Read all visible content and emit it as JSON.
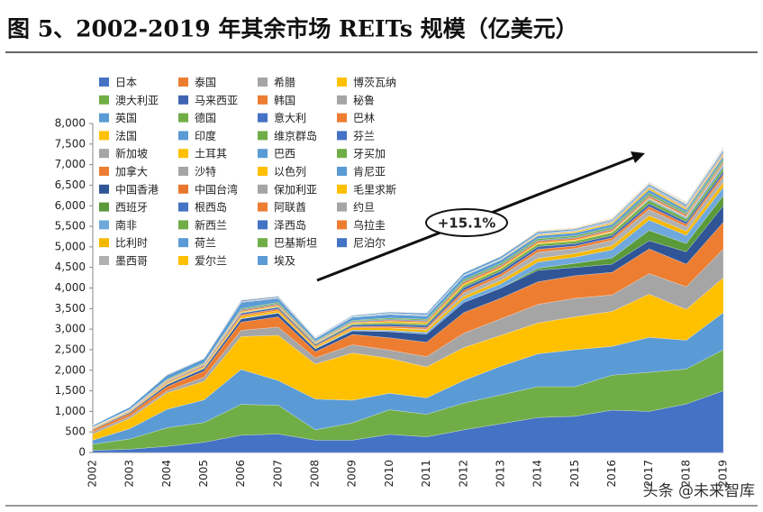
{
  "chart_data": {
    "type": "stacked-area",
    "title": "图 5、2002-2019 年其余市场 REITs 规模（亿美元）",
    "annotation": "+15.1%",
    "categories": [
      "2002",
      "2003",
      "2004",
      "2005",
      "2006",
      "2007",
      "2008",
      "2009",
      "2010",
      "2011",
      "2012",
      "2013",
      "2014",
      "2015",
      "2016",
      "2017",
      "2018",
      "2019"
    ],
    "ylim": [
      0,
      8000
    ],
    "yticks": [
      0,
      500,
      {
        "value": 1000,
        "label": "1,000"
      },
      {
        "value": 1500,
        "label": "1,500"
      },
      {
        "value": 2000,
        "label": "2,000"
      },
      {
        "value": 2500,
        "label": "2,500"
      },
      {
        "value": 3000,
        "label": "3,000"
      },
      {
        "value": 3500,
        "label": "3,500"
      },
      {
        "value": 4000,
        "label": "4,000"
      },
      {
        "value": 4500,
        "label": "4,500"
      },
      {
        "value": 5000,
        "label": "5,000"
      },
      {
        "value": 5500,
        "label": "5,500"
      },
      {
        "value": 6000,
        "label": "6,000"
      },
      {
        "value": 6500,
        "label": "6,500"
      },
      {
        "value": 7000,
        "label": "7,000"
      },
      {
        "value": 7500,
        "label": "7,500"
      },
      {
        "value": 8000,
        "label": "8,000"
      }
    ],
    "series": [
      {
        "name": "日本",
        "color": "#4472c4",
        "values": [
          50,
          80,
          150,
          250,
          420,
          450,
          300,
          300,
          440,
          380,
          550,
          700,
          850,
          880,
          1030,
          1000,
          1180,
          1500
        ]
      },
      {
        "name": "澳大利亚",
        "color": "#70ad47",
        "values": [
          150,
          250,
          450,
          480,
          750,
          700,
          250,
          420,
          600,
          550,
          650,
          700,
          750,
          720,
          850,
          950,
          850,
          1000
        ]
      },
      {
        "name": "英国",
        "color": "#5b9bd5",
        "values": [
          100,
          250,
          450,
          550,
          850,
          600,
          750,
          550,
          400,
          400,
          550,
          700,
          800,
          900,
          700,
          850,
          700,
          900
        ]
      },
      {
        "name": "法国",
        "color": "#ffc000",
        "values": [
          150,
          250,
          400,
          450,
          800,
          1100,
          850,
          1150,
          850,
          750,
          800,
          750,
          750,
          800,
          850,
          1050,
          750,
          850
        ]
      },
      {
        "name": "新加坡",
        "color": "#a5a5a5",
        "values": [
          50,
          50,
          50,
          100,
          150,
          200,
          150,
          200,
          200,
          250,
          350,
          400,
          450,
          450,
          400,
          500,
          550,
          700
        ]
      },
      {
        "name": "加拿大",
        "color": "#ed7d31",
        "values": [
          50,
          70,
          100,
          150,
          200,
          250,
          150,
          250,
          300,
          350,
          500,
          500,
          550,
          550,
          550,
          600,
          550,
          650
        ]
      },
      {
        "name": "中国香港",
        "color": "#2f5597",
        "values": [
          20,
          30,
          50,
          60,
          80,
          90,
          70,
          90,
          150,
          200,
          250,
          250,
          280,
          200,
          200,
          200,
          300,
          400
        ]
      },
      {
        "name": "西班牙",
        "color": "#5a9a3a",
        "values": [
          0,
          0,
          0,
          0,
          0,
          0,
          0,
          0,
          0,
          0,
          0,
          0,
          50,
          100,
          150,
          250,
          200,
          250
        ]
      },
      {
        "name": "南非",
        "color": "#6fa8dc",
        "values": [
          0,
          0,
          10,
          10,
          10,
          10,
          10,
          20,
          30,
          40,
          80,
          100,
          150,
          150,
          200,
          250,
          200,
          200
        ]
      },
      {
        "name": "比利时",
        "color": "#f5b800",
        "values": [
          20,
          20,
          30,
          30,
          50,
          50,
          40,
          50,
          60,
          60,
          70,
          80,
          90,
          90,
          100,
          110,
          100,
          120
        ]
      },
      {
        "name": "墨西哥",
        "color": "#b0b0b0",
        "values": [
          0,
          0,
          0,
          0,
          0,
          0,
          0,
          0,
          0,
          20,
          80,
          100,
          150,
          120,
          130,
          150,
          110,
          130
        ]
      },
      {
        "name": "泰国",
        "color": "#ed7d31",
        "values": [
          10,
          15,
          20,
          25,
          40,
          40,
          30,
          30,
          40,
          40,
          60,
          60,
          70,
          60,
          60,
          70,
          60,
          70
        ]
      },
      {
        "name": "马来西亚",
        "color": "#3e64b3",
        "values": [
          10,
          15,
          20,
          25,
          40,
          40,
          30,
          40,
          50,
          50,
          70,
          70,
          70,
          60,
          60,
          70,
          60,
          70
        ]
      },
      {
        "name": "德国",
        "color": "#70ad47",
        "values": [
          0,
          0,
          0,
          0,
          10,
          20,
          20,
          30,
          40,
          40,
          50,
          60,
          60,
          60,
          70,
          80,
          70,
          80
        ]
      },
      {
        "name": "印度",
        "color": "#5b9bd5",
        "values": [
          0,
          0,
          0,
          0,
          0,
          0,
          0,
          0,
          0,
          0,
          0,
          0,
          0,
          0,
          0,
          30,
          30,
          60
        ]
      },
      {
        "name": "土耳其",
        "color": "#ffc000",
        "values": [
          0,
          0,
          10,
          10,
          20,
          20,
          10,
          20,
          30,
          30,
          40,
          30,
          30,
          30,
          20,
          20,
          10,
          15
        ]
      },
      {
        "name": "沙特",
        "color": "#a5a5a5",
        "values": [
          0,
          0,
          0,
          0,
          0,
          0,
          0,
          0,
          0,
          0,
          0,
          0,
          0,
          0,
          10,
          20,
          20,
          30
        ]
      },
      {
        "name": "中国台湾",
        "color": "#e8762d",
        "values": [
          5,
          10,
          20,
          20,
          30,
          30,
          20,
          20,
          30,
          30,
          40,
          40,
          40,
          40,
          40,
          40,
          40,
          40
        ]
      },
      {
        "name": "根西岛",
        "color": "#4472c4",
        "values": [
          0,
          0,
          0,
          0,
          20,
          20,
          10,
          20,
          20,
          20,
          20,
          20,
          20,
          20,
          20,
          20,
          20,
          20
        ]
      },
      {
        "name": "新西兰",
        "color": "#70ad47",
        "values": [
          10,
          10,
          20,
          20,
          30,
          30,
          20,
          20,
          30,
          30,
          40,
          40,
          40,
          40,
          40,
          50,
          40,
          50
        ]
      },
      {
        "name": "荷兰",
        "color": "#5b9bd5",
        "values": [
          40,
          60,
          100,
          100,
          150,
          100,
          60,
          80,
          90,
          80,
          90,
          80,
          70,
          70,
          70,
          80,
          60,
          70
        ]
      },
      {
        "name": "爱尔兰",
        "color": "#ffc000",
        "values": [
          0,
          0,
          0,
          0,
          0,
          0,
          0,
          0,
          0,
          0,
          0,
          10,
          20,
          30,
          30,
          40,
          30,
          30
        ]
      },
      {
        "name": "希腊",
        "color": "#a5a5a5",
        "values": [
          0,
          0,
          10,
          10,
          20,
          15,
          5,
          5,
          5,
          5,
          5,
          5,
          10,
          10,
          20,
          20,
          20,
          20
        ]
      },
      {
        "name": "韩国",
        "color": "#ed7d31",
        "values": [
          0,
          0,
          5,
          5,
          5,
          5,
          5,
          5,
          5,
          5,
          5,
          5,
          5,
          5,
          10,
          10,
          20,
          30
        ]
      },
      {
        "name": "意大利",
        "color": "#4472c4",
        "values": [
          0,
          0,
          10,
          10,
          20,
          20,
          10,
          10,
          10,
          10,
          10,
          10,
          15,
          15,
          15,
          15,
          15,
          15
        ]
      },
      {
        "name": "维京群岛",
        "color": "#70ad47",
        "values": [
          0,
          0,
          0,
          0,
          5,
          5,
          5,
          5,
          5,
          5,
          5,
          5,
          5,
          5,
          5,
          5,
          5,
          5
        ]
      },
      {
        "name": "巴西",
        "color": "#5b9bd5",
        "values": [
          0,
          0,
          0,
          0,
          10,
          10,
          10,
          20,
          30,
          40,
          50,
          50,
          40,
          30,
          30,
          40,
          40,
          50
        ]
      },
      {
        "name": "以色列",
        "color": "#ffc000",
        "values": [
          0,
          0,
          0,
          0,
          5,
          5,
          5,
          5,
          5,
          5,
          5,
          5,
          10,
          10,
          10,
          10,
          10,
          10
        ]
      },
      {
        "name": "保加利亚",
        "color": "#a5a5a5",
        "values": [
          0,
          0,
          0,
          0,
          5,
          5,
          5,
          5,
          5,
          5,
          5,
          5,
          5,
          5,
          5,
          5,
          5,
          5
        ]
      },
      {
        "name": "阿联酋",
        "color": "#ed7d31",
        "values": [
          0,
          0,
          0,
          0,
          0,
          0,
          0,
          0,
          5,
          5,
          5,
          5,
          10,
          10,
          10,
          10,
          10,
          10
        ]
      },
      {
        "name": "泽西岛",
        "color": "#4472c4",
        "values": [
          0,
          0,
          0,
          0,
          5,
          5,
          5,
          5,
          5,
          5,
          5,
          5,
          5,
          5,
          5,
          5,
          5,
          5
        ]
      },
      {
        "name": "巴基斯坦",
        "color": "#70ad47",
        "values": [
          0,
          0,
          0,
          0,
          0,
          0,
          0,
          0,
          0,
          0,
          0,
          0,
          0,
          0,
          5,
          5,
          5,
          5
        ]
      },
      {
        "name": "埃及",
        "color": "#5b9bd5",
        "values": [
          0,
          0,
          0,
          0,
          0,
          0,
          0,
          0,
          0,
          0,
          0,
          0,
          0,
          0,
          0,
          0,
          5,
          5
        ]
      },
      {
        "name": "博茨瓦纳",
        "color": "#ffc000",
        "values": [
          0,
          0,
          0,
          0,
          0,
          0,
          0,
          0,
          0,
          0,
          5,
          5,
          5,
          5,
          5,
          5,
          5,
          5
        ]
      },
      {
        "name": "秘鲁",
        "color": "#a5a5a5",
        "values": [
          0,
          0,
          0,
          0,
          0,
          0,
          0,
          0,
          0,
          0,
          0,
          0,
          5,
          5,
          5,
          5,
          5,
          5
        ]
      },
      {
        "name": "巴林",
        "color": "#ed7d31",
        "values": [
          0,
          0,
          0,
          0,
          0,
          0,
          0,
          0,
          0,
          0,
          0,
          5,
          5,
          5,
          5,
          5,
          5,
          5
        ]
      },
      {
        "name": "芬兰",
        "color": "#4472c4",
        "values": [
          0,
          0,
          0,
          0,
          0,
          0,
          0,
          0,
          0,
          0,
          0,
          0,
          0,
          0,
          5,
          5,
          5,
          5
        ]
      },
      {
        "name": "牙买加",
        "color": "#70ad47",
        "values": [
          0,
          0,
          0,
          0,
          0,
          0,
          0,
          0,
          0,
          0,
          0,
          0,
          0,
          0,
          0,
          5,
          5,
          5
        ]
      },
      {
        "name": "肯尼亚",
        "color": "#5b9bd5",
        "values": [
          0,
          0,
          0,
          0,
          0,
          0,
          0,
          0,
          0,
          0,
          0,
          0,
          0,
          0,
          0,
          5,
          5,
          5
        ]
      },
      {
        "name": "毛里求斯",
        "color": "#ffc000",
        "values": [
          0,
          0,
          0,
          0,
          0,
          0,
          0,
          0,
          0,
          0,
          0,
          0,
          0,
          0,
          5,
          5,
          5,
          5
        ]
      },
      {
        "name": "约旦",
        "color": "#a5a5a5",
        "values": [
          0,
          0,
          0,
          0,
          0,
          0,
          0,
          0,
          0,
          0,
          0,
          0,
          0,
          0,
          0,
          0,
          5,
          5
        ]
      },
      {
        "name": "乌拉圭",
        "color": "#ed7d31",
        "values": [
          0,
          0,
          0,
          0,
          0,
          0,
          0,
          0,
          0,
          0,
          0,
          0,
          0,
          0,
          0,
          0,
          0,
          5
        ]
      },
      {
        "name": "尼泊尔",
        "color": "#4472c4",
        "values": [
          0,
          0,
          0,
          0,
          0,
          0,
          0,
          0,
          0,
          0,
          0,
          0,
          0,
          0,
          0,
          0,
          0,
          5
        ]
      }
    ]
  },
  "watermark": "头条 @未来智库"
}
